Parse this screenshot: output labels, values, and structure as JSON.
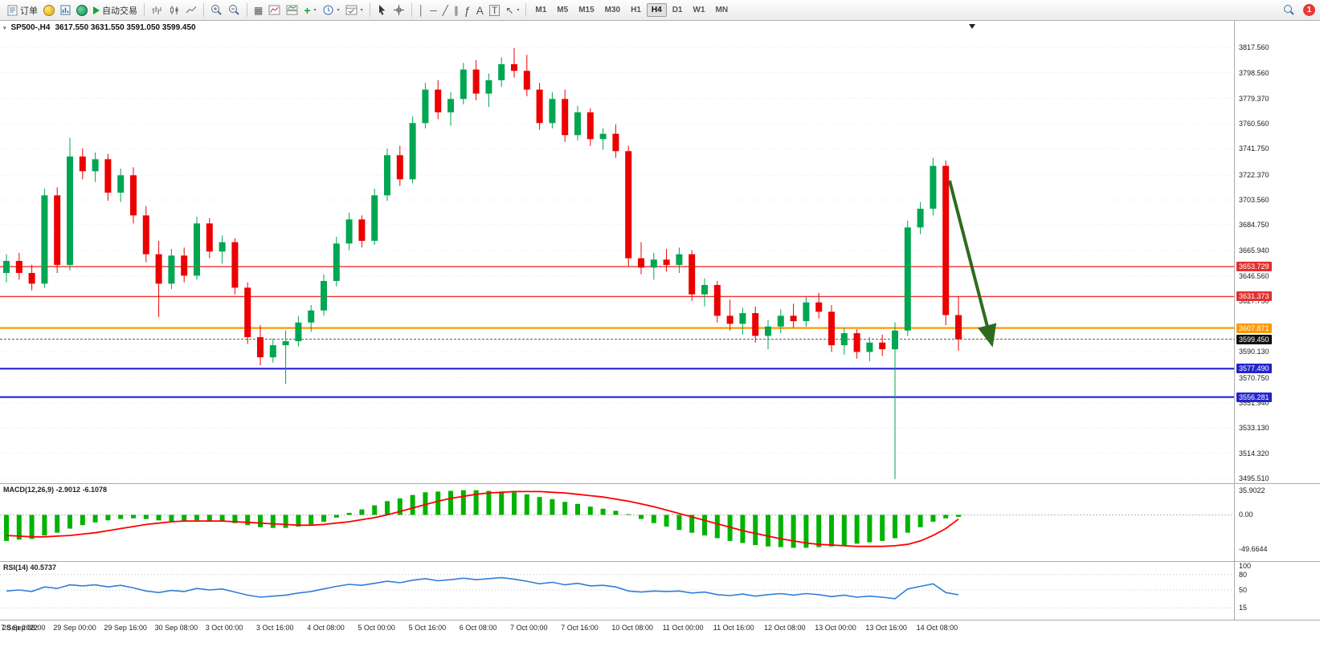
{
  "toolbar": {
    "order_label": "订单",
    "autotrade_label": "自动交易",
    "timeframes": [
      "M1",
      "M5",
      "M15",
      "M30",
      "H1",
      "H4",
      "D1",
      "W1",
      "MN"
    ],
    "active_timeframe": "H4",
    "notification_count": "1",
    "glyphs": {
      "caret": "▾",
      "grid": "▦",
      "plus": "+",
      "vline": "│",
      "hline": "─",
      "trendline": "╱",
      "channel": "∥",
      "fibonacci": "ƒ",
      "text": "A",
      "text_label": "T",
      "arrows": "↖"
    }
  },
  "chart": {
    "title_symbol": "SP500-,H4",
    "ohlc": "3617.550 3631.550 3591.050 3599.450"
  },
  "panels": {
    "macd_label": "MACD(12,26,9) -2.9012 -6.1078",
    "rsi_label": "RSI(14) 40.5737"
  },
  "chart_data": [
    {
      "type": "candlestick",
      "symbol": "SP500-",
      "timeframe": "H4",
      "up_color": "#00a651",
      "down_color": "#ec0000",
      "ylim": [
        3495.51,
        3817.56
      ],
      "y_ticks": [
        "3817.560",
        "3798.560",
        "3779.370",
        "3760.560",
        "3741.750",
        "3722.370",
        "3703.560",
        "3684.750",
        "3665.940",
        "3646.560",
        "3627.750",
        "3590.130",
        "3570.750",
        "3551.940",
        "3533.130",
        "3514.320",
        "3495.510"
      ],
      "x_labels": [
        "7 Sep 2022",
        "28 Sep 08:00",
        "29 Sep 00:00",
        "29 Sep 16:00",
        "30 Sep 08:00",
        "3 Oct 00:00",
        "3 Oct 16:00",
        "4 Oct 08:00",
        "5 Oct 00:00",
        "5 Oct 16:00",
        "6 Oct 08:00",
        "7 Oct 00:00",
        "7 Oct 16:00",
        "10 Oct 08:00",
        "11 Oct 00:00",
        "11 Oct 16:00",
        "12 Oct 08:00",
        "13 Oct 00:00",
        "13 Oct 16:00",
        "14 Oct 08:00"
      ],
      "candles": [
        [
          3649,
          3663,
          3642,
          3658
        ],
        [
          3658,
          3664,
          3644,
          3649
        ],
        [
          3649,
          3655,
          3636,
          3641
        ],
        [
          3641,
          3712,
          3638,
          3707
        ],
        [
          3707,
          3713,
          3649,
          3655
        ],
        [
          3655,
          3750,
          3651,
          3736
        ],
        [
          3736,
          3742,
          3719,
          3725
        ],
        [
          3725,
          3739,
          3717,
          3734
        ],
        [
          3734,
          3738,
          3703,
          3709
        ],
        [
          3709,
          3727,
          3702,
          3722
        ],
        [
          3722,
          3728,
          3686,
          3692
        ],
        [
          3692,
          3699,
          3657,
          3663
        ],
        [
          3663,
          3673,
          3616,
          3641
        ],
        [
          3641,
          3667,
          3637,
          3662
        ],
        [
          3662,
          3668,
          3642,
          3647
        ],
        [
          3647,
          3691,
          3644,
          3686
        ],
        [
          3686,
          3690,
          3660,
          3665
        ],
        [
          3665,
          3677,
          3656,
          3672
        ],
        [
          3672,
          3675,
          3633,
          3638
        ],
        [
          3638,
          3642,
          3596,
          3601
        ],
        [
          3601,
          3610,
          3580,
          3586
        ],
        [
          3586,
          3600,
          3582,
          3595
        ],
        [
          3595,
          3606,
          3566,
          3598
        ],
        [
          3598,
          3617,
          3594,
          3612
        ],
        [
          3612,
          3625,
          3605,
          3621
        ],
        [
          3621,
          3648,
          3617,
          3643
        ],
        [
          3643,
          3676,
          3639,
          3671
        ],
        [
          3671,
          3694,
          3666,
          3689
        ],
        [
          3689,
          3692,
          3668,
          3673
        ],
        [
          3673,
          3712,
          3670,
          3707
        ],
        [
          3707,
          3742,
          3703,
          3737
        ],
        [
          3737,
          3744,
          3714,
          3719
        ],
        [
          3719,
          3766,
          3716,
          3761
        ],
        [
          3761,
          3791,
          3757,
          3786
        ],
        [
          3786,
          3793,
          3764,
          3769
        ],
        [
          3769,
          3784,
          3759,
          3779
        ],
        [
          3779,
          3806,
          3775,
          3801
        ],
        [
          3801,
          3808,
          3778,
          3783
        ],
        [
          3783,
          3798,
          3773,
          3793
        ],
        [
          3793,
          3810,
          3788,
          3805
        ],
        [
          3805,
          3817,
          3795,
          3800
        ],
        [
          3800,
          3812,
          3781,
          3786
        ],
        [
          3786,
          3791,
          3756,
          3761
        ],
        [
          3761,
          3784,
          3757,
          3779
        ],
        [
          3779,
          3786,
          3747,
          3752
        ],
        [
          3752,
          3774,
          3748,
          3769
        ],
        [
          3769,
          3772,
          3744,
          3749
        ],
        [
          3749,
          3757,
          3741,
          3753
        ],
        [
          3753,
          3760,
          3735,
          3740
        ],
        [
          3740,
          3744,
          3654,
          3660
        ],
        [
          3660,
          3672,
          3648,
          3653
        ],
        [
          3653,
          3664,
          3644,
          3659
        ],
        [
          3659,
          3667,
          3650,
          3655
        ],
        [
          3655,
          3668,
          3649,
          3663
        ],
        [
          3663,
          3666,
          3628,
          3633
        ],
        [
          3633,
          3645,
          3624,
          3640
        ],
        [
          3640,
          3643,
          3612,
          3617
        ],
        [
          3617,
          3629,
          3606,
          3611
        ],
        [
          3611,
          3623,
          3603,
          3619
        ],
        [
          3619,
          3624,
          3597,
          3602
        ],
        [
          3602,
          3614,
          3592,
          3609
        ],
        [
          3609,
          3622,
          3604,
          3617
        ],
        [
          3617,
          3626,
          3608,
          3613
        ],
        [
          3613,
          3631,
          3609,
          3627
        ],
        [
          3627,
          3634,
          3615,
          3620
        ],
        [
          3620,
          3625,
          3590,
          3595
        ],
        [
          3595,
          3608,
          3588,
          3604
        ],
        [
          3604,
          3607,
          3585,
          3590
        ],
        [
          3590,
          3601,
          3583,
          3597
        ],
        [
          3597,
          3603,
          3587,
          3592
        ],
        [
          3592,
          3612,
          3495,
          3606
        ],
        [
          3606,
          3688,
          3602,
          3683
        ],
        [
          3683,
          3702,
          3678,
          3697
        ],
        [
          3697,
          3735,
          3692,
          3729
        ],
        [
          3729,
          3733,
          3610,
          3617.55
        ],
        [
          3617.55,
          3631.55,
          3591.05,
          3599.45
        ]
      ],
      "horizontal_lines": [
        {
          "price": 3653.729,
          "label": "3653.729",
          "color": "#f03030",
          "width": 1.3,
          "dash": "",
          "label_bg": "#e33030"
        },
        {
          "price": 3631.373,
          "label": "3631.373",
          "color": "#f03030",
          "width": 1.3,
          "dash": "",
          "label_bg": "#e33030"
        },
        {
          "price": 3607.871,
          "label": "3607.871",
          "color": "#ff9800",
          "width": 2.2,
          "dash": "",
          "label_bg": "#ff9800"
        },
        {
          "price": 3599.45,
          "label": "3599.450",
          "color": "#555555",
          "width": 1,
          "dash": "3,2",
          "label_bg": "#111111"
        },
        {
          "price": 3577.49,
          "label": "3577.490",
          "color": "#2424cc",
          "width": 2.2,
          "dash": "",
          "label_bg": "#2424cc"
        },
        {
          "price": 3556.281,
          "label": "3556.281",
          "color": "#2424cc",
          "width": 2.2,
          "dash": "",
          "label_bg": "#2424cc"
        }
      ],
      "annotation": {
        "type": "arrow",
        "from": {
          "index": 74.3,
          "price": 3718
        },
        "to": {
          "index": 77.6,
          "price": 3597
        },
        "color": "#2e6b1e",
        "width": 4
      }
    },
    {
      "name": "MACD(12,26,9)",
      "type": "bar",
      "bar_color": "#00b300",
      "signal_color": "#ff0000",
      "ylim": [
        -58,
        45
      ],
      "y_ticks": [
        "35.9022",
        "0.00",
        "-49.6644"
      ],
      "values": [
        -38,
        -36,
        -35,
        -30,
        -26,
        -20,
        -15,
        -11,
        -8,
        -6,
        -5,
        -6,
        -8,
        -9,
        -9,
        -8,
        -9,
        -10,
        -12,
        -15,
        -18,
        -19,
        -19,
        -17,
        -14,
        -10,
        -4,
        3,
        8,
        14,
        20,
        24,
        29,
        33,
        34,
        35,
        36,
        36,
        35,
        34,
        33,
        30,
        26,
        23,
        19,
        16,
        12,
        9,
        6,
        1,
        -6,
        -12,
        -17,
        -22,
        -26,
        -30,
        -34,
        -38,
        -41,
        -44,
        -46,
        -47,
        -48,
        -48,
        -47,
        -46,
        -44,
        -42,
        -40,
        -38,
        -34,
        -26,
        -18,
        -10,
        -5,
        -2.9
      ],
      "signal": [
        -30,
        -31,
        -32,
        -32,
        -31,
        -30,
        -28,
        -26,
        -23,
        -20,
        -17,
        -14,
        -12,
        -10,
        -9,
        -9,
        -9,
        -9,
        -10,
        -11,
        -12,
        -13,
        -14,
        -15,
        -15,
        -14,
        -12,
        -10,
        -7,
        -4,
        0,
        5,
        10,
        15,
        20,
        24,
        27,
        30,
        32,
        33,
        34,
        34,
        34,
        33,
        32,
        30,
        28,
        26,
        23,
        20,
        16,
        12,
        7,
        2,
        -3,
        -8,
        -13,
        -18,
        -23,
        -27,
        -31,
        -35,
        -38,
        -41,
        -43,
        -44,
        -45,
        -46,
        -46,
        -46,
        -45,
        -43,
        -38,
        -30,
        -20,
        -6.1
      ]
    },
    {
      "name": "RSI(14)",
      "type": "line",
      "line_color": "#2f7ed8",
      "ylim": [
        0,
        100
      ],
      "levels": [
        80,
        50,
        15
      ],
      "y_ticks": [
        "100",
        "80",
        "50",
        "15"
      ],
      "values": [
        48,
        50,
        47,
        56,
        53,
        60,
        58,
        60,
        56,
        59,
        54,
        48,
        45,
        49,
        47,
        53,
        50,
        52,
        46,
        40,
        36,
        38,
        40,
        44,
        47,
        52,
        57,
        61,
        59,
        63,
        67,
        64,
        69,
        72,
        68,
        70,
        73,
        70,
        72,
        74,
        71,
        67,
        62,
        65,
        60,
        63,
        58,
        59,
        56,
        48,
        46,
        48,
        47,
        48,
        44,
        46,
        41,
        39,
        42,
        38,
        41,
        43,
        40,
        43,
        41,
        37,
        40,
        36,
        38,
        36,
        33,
        52,
        57,
        62,
        45,
        40.57
      ]
    }
  ]
}
